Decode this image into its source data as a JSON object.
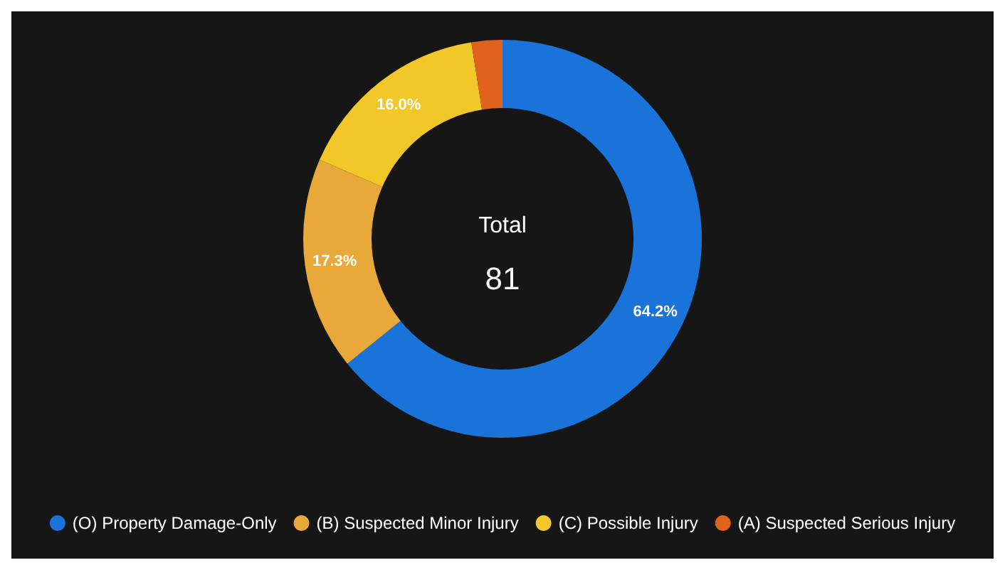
{
  "chart_data": {
    "type": "donut",
    "categories": [
      "(O) Property Damage-Only",
      "(B) Suspected Minor Injury",
      "(C) Possible Injury",
      "(A) Suspected Serious Injury"
    ],
    "values": [
      64.2,
      17.3,
      16.0,
      2.5
    ],
    "colors": [
      "#1a73d9",
      "#e8a83a",
      "#f2c72a",
      "#e0621c"
    ],
    "value_labels": [
      "64.2%",
      "17.3%",
      "16.0%",
      null
    ],
    "annotations": [
      "Total",
      "81"
    ],
    "legend": "bottom"
  }
}
